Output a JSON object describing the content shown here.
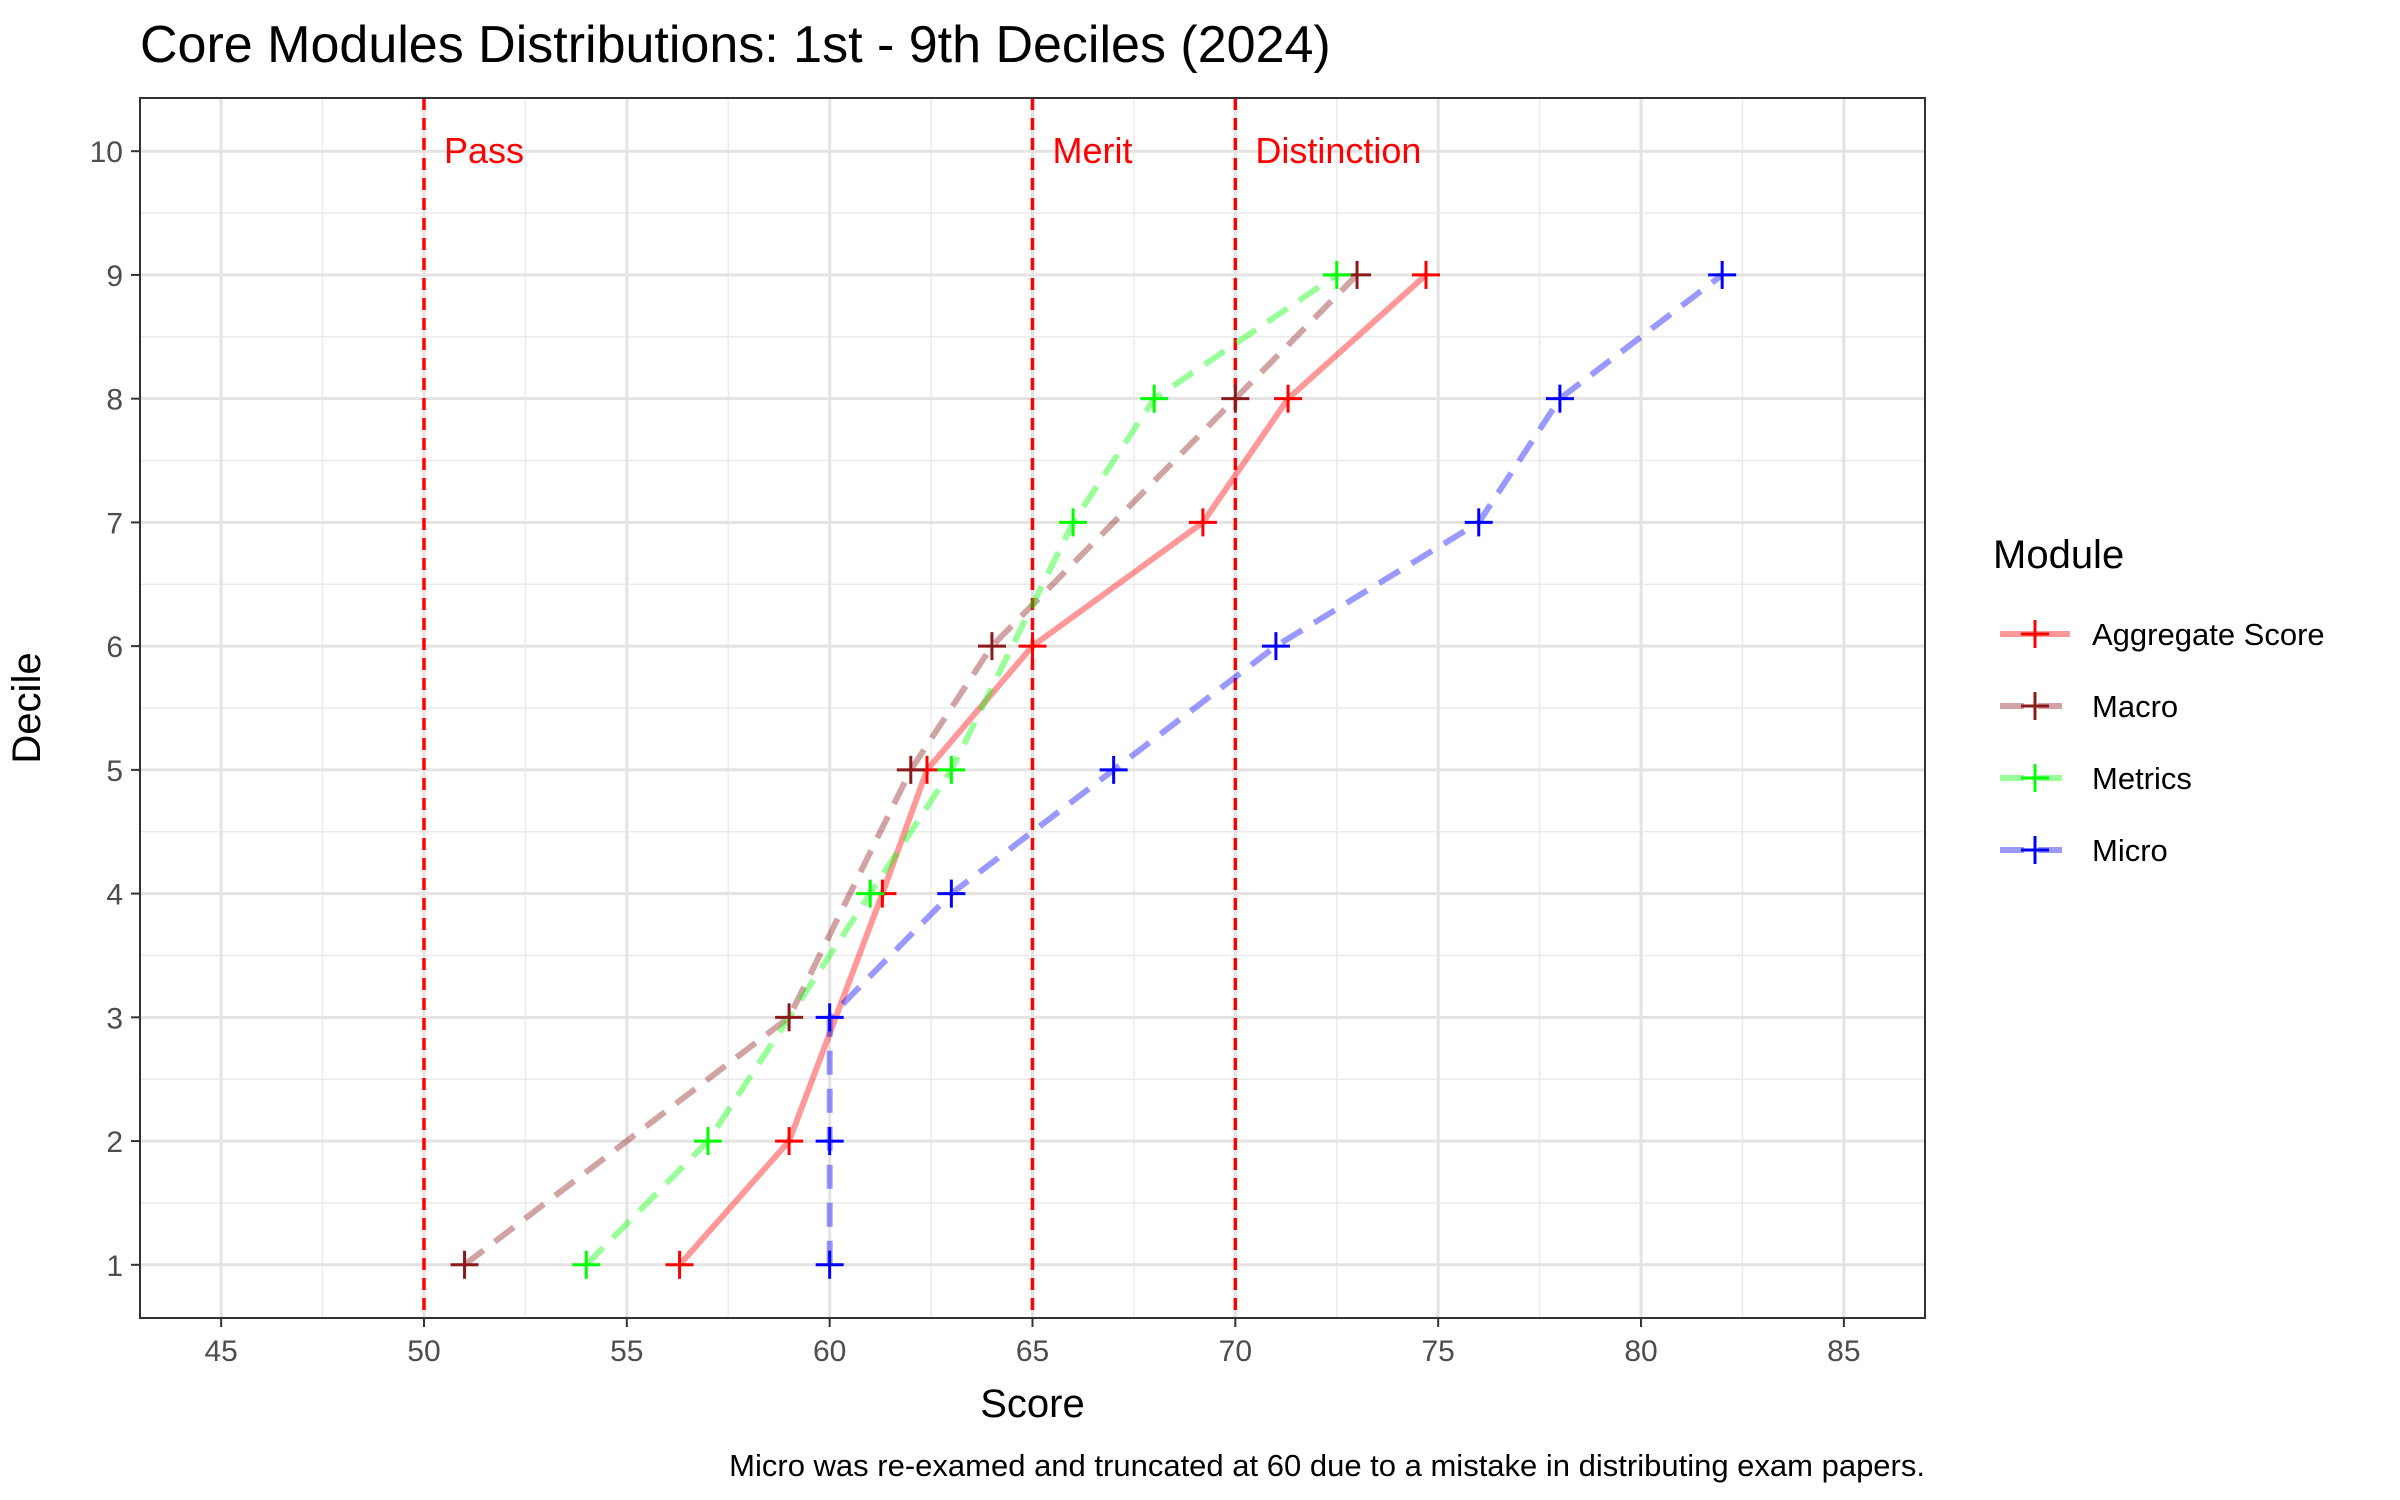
{
  "chart_data": {
    "type": "line",
    "title": "Core Modules Distributions: 1st - 9th Deciles (2024)",
    "xlabel": "Score",
    "ylabel": "Decile",
    "xlim": [
      43,
      87
    ],
    "ylim": [
      0.57,
      10.43
    ],
    "x_ticks": [
      45,
      50,
      55,
      60,
      65,
      70,
      75,
      80,
      85
    ],
    "y_ticks": [
      1,
      2,
      3,
      4,
      5,
      6,
      7,
      8,
      9,
      10
    ],
    "grid": true,
    "legend_title": "Module",
    "legend_position": "right",
    "caption": "Micro was re-examed and truncated at 60 due to a mistake in distributing exam papers.",
    "reference_lines": [
      {
        "x": 50,
        "label": "Pass",
        "color": "#ff0000"
      },
      {
        "x": 65,
        "label": "Merit",
        "color": "#ff0000"
      },
      {
        "x": 70,
        "label": "Distinction",
        "color": "#ff0000"
      }
    ],
    "series": [
      {
        "name": "Aggregate Score",
        "color": "#ff0000",
        "line_style": "solid",
        "x": [
          56.3,
          59.0,
          61.3,
          62.4,
          65.0,
          69.2,
          71.3,
          74.7
        ],
        "y": [
          1,
          2,
          4,
          5,
          6,
          7,
          8,
          9
        ]
      },
      {
        "name": "Macro",
        "color": "#8b1a1a",
        "line_style": "dashed",
        "x": [
          51.0,
          59.0,
          62.0,
          64.0,
          70.0,
          73.0
        ],
        "y": [
          1,
          3,
          5,
          6,
          8,
          9
        ]
      },
      {
        "name": "Metrics",
        "color": "#00ff00",
        "line_style": "dashed",
        "x": [
          54.0,
          57.0,
          61.0,
          63.0,
          66.0,
          68.0,
          72.5
        ],
        "y": [
          1,
          2,
          4,
          5,
          7,
          8,
          9
        ]
      },
      {
        "name": "Micro",
        "color": "#0000ff",
        "line_style": "dashed",
        "x": [
          60.0,
          60.0,
          60.0,
          63.0,
          67.0,
          71.0,
          76.0,
          78.0,
          82.0
        ],
        "y": [
          1,
          2,
          3,
          4,
          5,
          6,
          7,
          8,
          9
        ]
      }
    ]
  }
}
